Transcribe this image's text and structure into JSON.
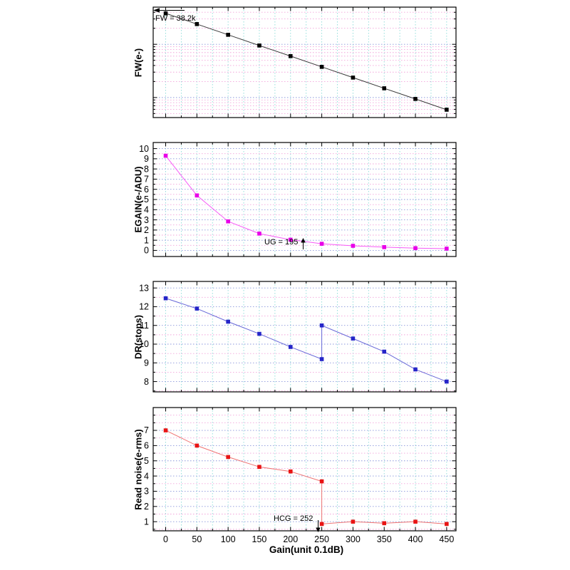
{
  "figure": {
    "xlabel": "Gain(unit 0.1dB)",
    "xlim": [
      -20,
      465
    ],
    "xticks": [
      0,
      50,
      100,
      150,
      200,
      250,
      300,
      350,
      400,
      450
    ],
    "xticks_minor": [
      25,
      75,
      125,
      175,
      225,
      275,
      325,
      375,
      425
    ]
  },
  "grid_colors": {
    "vertical": "#8adbd8",
    "major": "#8a96dc",
    "minor": "#f2a3da"
  },
  "chart_data": [
    {
      "type": "line",
      "name": "full-well",
      "ylabel": "FW(e-)",
      "yscale": "log",
      "ylim": [
        420,
        50000
      ],
      "x": [
        0,
        50,
        100,
        150,
        200,
        250,
        300,
        350,
        400,
        450
      ],
      "y": [
        38200,
        24000,
        15100,
        9500,
        6000,
        3770,
        2370,
        1490,
        940,
        590
      ],
      "yticks": [
        1000,
        10000
      ],
      "ytick_labels": [],
      "yticks_minor": [
        500,
        600,
        700,
        800,
        900,
        2000,
        3000,
        4000,
        5000,
        6000,
        7000,
        8000,
        9000,
        20000,
        30000,
        40000
      ],
      "line_color": "#3a3a3a",
      "marker_color": "#000000",
      "annotation": "FW = 38.2k"
    },
    {
      "type": "line",
      "name": "egain",
      "ylabel": "EGAIN(e-/ADU)",
      "yscale": "linear",
      "ylim": [
        -0.6,
        10.6
      ],
      "x": [
        0,
        50,
        100,
        150,
        200,
        250,
        300,
        350,
        400,
        450
      ],
      "y": [
        9.3,
        5.4,
        2.85,
        1.65,
        1.05,
        0.65,
        0.45,
        0.32,
        0.22,
        0.17
      ],
      "yticks": [
        0,
        1,
        2,
        3,
        4,
        5,
        6,
        7,
        8,
        9,
        10
      ],
      "ytick_labels": [
        "0",
        "1",
        "2",
        "3",
        "4",
        "5",
        "6",
        "7",
        "8",
        "9",
        "10"
      ],
      "yticks_minor": [
        0.5,
        1.5,
        2.5,
        3.5,
        4.5,
        5.5,
        6.5,
        7.5,
        8.5,
        9.5
      ],
      "line_color": "#f75bf7",
      "marker_color": "#e800e8",
      "annotation": "UG = 195"
    },
    {
      "type": "line",
      "name": "dynamic-range",
      "ylabel": "DR(stops)",
      "yscale": "linear",
      "ylim": [
        7.45,
        13.35
      ],
      "x": [
        0,
        50,
        100,
        150,
        200,
        250,
        250,
        300,
        350,
        400,
        450
      ],
      "y": [
        12.45,
        11.9,
        11.2,
        10.55,
        9.85,
        9.2,
        11.0,
        10.3,
        9.6,
        8.65,
        8.0
      ],
      "yticks": [
        8,
        9,
        10,
        11,
        12,
        13
      ],
      "ytick_labels": [
        "8",
        "9",
        "10",
        "11",
        "12",
        "13"
      ],
      "yticks_minor": [
        7.5,
        8.5,
        9.5,
        10.5,
        11.5,
        12.5
      ],
      "line_color": "#6868d8",
      "marker_color": "#2525c8",
      "annotation": ""
    },
    {
      "type": "line",
      "name": "read-noise",
      "ylabel": "Read noise(e-rms)",
      "yscale": "linear",
      "ylim": [
        0.4,
        8.5
      ],
      "x": [
        0,
        50,
        100,
        150,
        200,
        250,
        250,
        300,
        350,
        400,
        450
      ],
      "y": [
        7.0,
        6.0,
        5.25,
        4.6,
        4.3,
        3.65,
        0.85,
        1.0,
        0.9,
        1.0,
        0.85
      ],
      "yticks": [
        1,
        2,
        3,
        4,
        5,
        6,
        7
      ],
      "ytick_labels": [
        "1",
        "2",
        "3",
        "4",
        "5",
        "6",
        "7"
      ],
      "yticks_minor": [
        0.5,
        1.5,
        2.5,
        3.5,
        4.5,
        5.5,
        6.5,
        7.5,
        8
      ],
      "line_color": "#ef7272",
      "marker_color": "#e81414",
      "annotation": "HCG = 252"
    }
  ]
}
